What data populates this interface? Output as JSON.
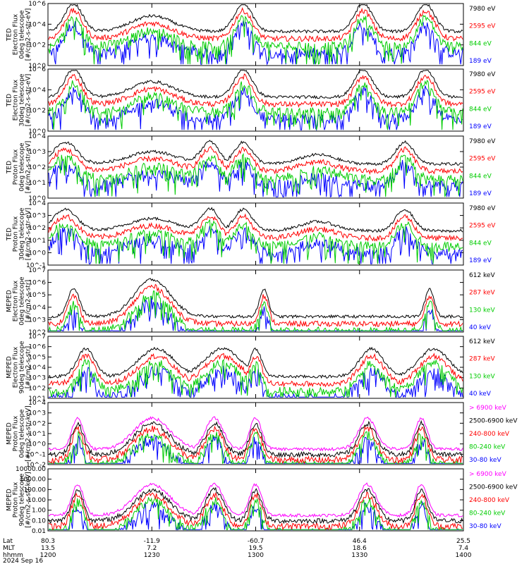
{
  "chart_data": {
    "type": "line",
    "time_axis": {
      "ticks": [
        "1200",
        "1230",
        "1300",
        "1330",
        "1400"
      ],
      "range_hhmm": [
        "1200",
        "1400"
      ]
    },
    "footer": {
      "row_labels": [
        "Lat",
        "MLT",
        "hhmm",
        "2024 Sep 16"
      ],
      "lat_values": [
        "80.3",
        "-11.9",
        "-60.7",
        "46.4",
        "25.5"
      ],
      "mlt_values": [
        "13.5",
        "7.2",
        "19.5",
        "18.6",
        "7.4"
      ],
      "hhmm_values": [
        "1200",
        "1230",
        "1300",
        "1330",
        "1400"
      ]
    },
    "panels": [
      {
        "ylabel_lines": [
          "TED",
          "Electron Flux",
          "0deg telescope",
          "[#/cm2-s-str-eV]"
        ],
        "yticks": [
          "10^6",
          "10^4",
          "10^2",
          "10^0"
        ],
        "ylim_log": [
          0,
          6
        ],
        "series": [
          {
            "name": "7980 eV",
            "color": "#000000"
          },
          {
            "name": "2595 eV",
            "color": "#ff0000"
          },
          {
            "name": "844 eV",
            "color": "#00cc00"
          },
          {
            "name": "189 eV",
            "color": "#0000ff"
          }
        ]
      },
      {
        "ylabel_lines": [
          "TED",
          "Electron Flux",
          "30deg telescope",
          "[#/cm2-s-str-eV]"
        ],
        "yticks": [
          "10^6",
          "10^4",
          "10^2",
          "10^0"
        ],
        "ylim_log": [
          0,
          6
        ],
        "series": [
          {
            "name": "7980 eV",
            "color": "#000000"
          },
          {
            "name": "2595 eV",
            "color": "#ff0000"
          },
          {
            "name": "844 eV",
            "color": "#00cc00"
          },
          {
            "name": "189 eV",
            "color": "#0000ff"
          }
        ]
      },
      {
        "ylabel_lines": [
          "TED",
          "Proton Flux",
          "0deg telescope",
          "[#/cm2-s-str-eV]"
        ],
        "yticks": [
          "10^4",
          "10^3",
          "10^2",
          "10^1",
          "10^0"
        ],
        "ylim_log": [
          0,
          4
        ],
        "series": [
          {
            "name": "7980 eV",
            "color": "#000000"
          },
          {
            "name": "2595 eV",
            "color": "#ff0000"
          },
          {
            "name": "844 eV",
            "color": "#00cc00"
          },
          {
            "name": "189 eV",
            "color": "#0000ff"
          }
        ]
      },
      {
        "ylabel_lines": [
          "TED",
          "Proton Flux",
          "30deg telescope",
          "[#/cm2-s-str-eV]"
        ],
        "yticks": [
          "10^4",
          "10^3",
          "10^2",
          "10^1",
          "10^0",
          "10^-1"
        ],
        "ylim_log": [
          -1,
          4
        ],
        "series": [
          {
            "name": "7980 eV",
            "color": "#000000"
          },
          {
            "name": "2595 eV",
            "color": "#ff0000"
          },
          {
            "name": "844 eV",
            "color": "#00cc00"
          },
          {
            "name": "189 eV",
            "color": "#0000ff"
          }
        ]
      },
      {
        "ylabel_lines": [
          "MEPED",
          "Electron Flux",
          "0deg telescope",
          "[#/cm2-s-str]"
        ],
        "yticks": [
          "10^7",
          "10^6",
          "10^5",
          "10^4",
          "10^3",
          "10^2"
        ],
        "ylim_log": [
          2,
          7
        ],
        "series": [
          {
            "name": "612 keV",
            "color": "#000000"
          },
          {
            "name": "287 keV",
            "color": "#ff0000"
          },
          {
            "name": "130 keV",
            "color": "#00cc00"
          },
          {
            "name": "40 keV",
            "color": "#0000ff"
          }
        ]
      },
      {
        "ylabel_lines": [
          "MEPED",
          "Electron Flux",
          "90deg telescope",
          "[#/cm2-s-str]"
        ],
        "yticks": [
          "10^7",
          "10^6",
          "10^5",
          "10^4",
          "10^3",
          "10^2",
          "10^1"
        ],
        "ylim_log": [
          1,
          7
        ],
        "series": [
          {
            "name": "612 keV",
            "color": "#000000"
          },
          {
            "name": "287 keV",
            "color": "#ff0000"
          },
          {
            "name": "130 keV",
            "color": "#00cc00"
          },
          {
            "name": "40 keV",
            "color": "#0000ff"
          }
        ]
      },
      {
        "ylabel_lines": [
          "MEPED",
          "Proton Flux",
          "0deg telescope",
          "[#/cm2-s-str-keV]"
        ],
        "yticks": [
          "10^4",
          "10^3",
          "10^2",
          "10^1",
          "10^0",
          "10^-1",
          "10^-2"
        ],
        "ylim_log": [
          -2,
          4
        ],
        "series": [
          {
            "name": "> 6900 keV",
            "color": "#ff00ff"
          },
          {
            "name": "2500-6900 keV",
            "color": "#000000"
          },
          {
            "name": "240-800 keV",
            "color": "#ff0000"
          },
          {
            "name": "80-240 keV",
            "color": "#00cc00"
          },
          {
            "name": "30-80 keV",
            "color": "#0000ff"
          }
        ]
      },
      {
        "ylabel_lines": [
          "MEPED",
          "Proton Flux",
          "90deg telescope",
          "[#/cm2-s-str-keV]"
        ],
        "yticks": [
          "10000.00",
          "1000.00",
          "100.00",
          "10.00",
          "1.00",
          "0.10",
          "0.01"
        ],
        "ylim_log": [
          -2,
          4
        ],
        "series": [
          {
            "name": "> 6900 keV",
            "color": "#ff00ff"
          },
          {
            "name": "2500-6900 keV",
            "color": "#000000"
          },
          {
            "name": "240-800 keV",
            "color": "#ff0000"
          },
          {
            "name": "80-240 keV",
            "color": "#00cc00"
          },
          {
            "name": "30-80 keV",
            "color": "#0000ff"
          }
        ]
      }
    ]
  }
}
